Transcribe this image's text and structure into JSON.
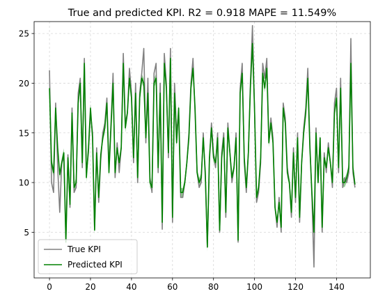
{
  "chart_data": {
    "type": "line",
    "title": "True and predicted KPI. R2 = 0.918 MAPE = 11.549%",
    "xlabel": "",
    "ylabel": "",
    "xlim": [
      -7.5,
      156.5
    ],
    "ylim": [
      0.4,
      26.2
    ],
    "xticks": [
      0,
      20,
      40,
      60,
      80,
      100,
      120,
      140
    ],
    "yticks": [
      5,
      10,
      15,
      20,
      25
    ],
    "grid": true,
    "legend_position": "lower-left",
    "colors": {
      "true": "#808080",
      "predicted": "#008000",
      "band": "#2ca02c"
    },
    "x": [
      0,
      1,
      2,
      3,
      4,
      5,
      6,
      7,
      8,
      9,
      10,
      11,
      12,
      13,
      14,
      15,
      16,
      17,
      18,
      19,
      20,
      21,
      22,
      23,
      24,
      25,
      26,
      27,
      28,
      29,
      30,
      31,
      32,
      33,
      34,
      35,
      36,
      37,
      38,
      39,
      40,
      41,
      42,
      43,
      44,
      45,
      46,
      47,
      48,
      49,
      50,
      51,
      52,
      53,
      54,
      55,
      56,
      57,
      58,
      59,
      60,
      61,
      62,
      63,
      64,
      65,
      66,
      67,
      68,
      69,
      70,
      71,
      72,
      73,
      74,
      75,
      76,
      77,
      78,
      79,
      80,
      81,
      82,
      83,
      84,
      85,
      86,
      87,
      88,
      89,
      90,
      91,
      92,
      93,
      94,
      95,
      96,
      97,
      98,
      99,
      100,
      101,
      102,
      103,
      104,
      105,
      106,
      107,
      108,
      109,
      110,
      111,
      112,
      113,
      114,
      115,
      116,
      117,
      118,
      119,
      120,
      121,
      122,
      123,
      124,
      125,
      126,
      127,
      128,
      129,
      130,
      131,
      132,
      133,
      134,
      135,
      136,
      137,
      138,
      139,
      140,
      141,
      142,
      143,
      144,
      145,
      146,
      147,
      148,
      149
    ],
    "series": [
      {
        "name": "True KPI",
        "values": [
          21.3,
          10.0,
          9.0,
          18.0,
          11.5,
          7.0,
          12.0,
          12.5,
          4.5,
          12.8,
          7.5,
          17.5,
          9.0,
          9.5,
          19.0,
          20.5,
          11.5,
          22.5,
          11.0,
          13.0,
          17.0,
          15.0,
          5.3,
          13.5,
          8.0,
          12.2,
          15.0,
          16.0,
          18.5,
          11.5,
          16.0,
          21.0,
          10.5,
          14.0,
          11.0,
          13.5,
          23.0,
          16.0,
          17.0,
          21.5,
          19.0,
          12.0,
          20.0,
          10.0,
          19.0,
          21.0,
          23.5,
          14.0,
          20.5,
          10.5,
          9.0,
          21.0,
          22.0,
          11.0,
          20.0,
          5.3,
          23.0,
          20.0,
          12.5,
          23.5,
          6.0,
          20.0,
          15.0,
          17.0,
          8.5,
          8.5,
          10.0,
          12.0,
          15.0,
          20.0,
          22.5,
          17.0,
          11.0,
          9.5,
          10.0,
          15.0,
          10.5,
          3.5,
          12.0,
          16.0,
          13.0,
          11.5,
          15.0,
          5.0,
          13.0,
          15.0,
          6.5,
          16.0,
          13.0,
          10.0,
          11.5,
          15.0,
          4.0,
          19.5,
          22.0,
          12.0,
          9.0,
          13.0,
          20.0,
          25.8,
          17.5,
          8.0,
          9.0,
          12.0,
          22.0,
          20.5,
          22.5,
          14.0,
          16.5,
          14.5,
          7.5,
          5.5,
          8.5,
          5.0,
          18.0,
          16.5,
          11.5,
          10.0,
          6.5,
          13.5,
          8.0,
          15.0,
          6.0,
          12.0,
          15.5,
          17.5,
          21.5,
          14.0,
          8.5,
          1.5,
          15.5,
          10.0,
          14.5,
          5.0,
          13.0,
          11.0,
          14.0,
          12.0,
          9.5,
          18.0,
          19.5,
          11.0,
          20.5,
          9.5,
          10.5,
          10.0,
          11.0,
          24.5,
          11.0,
          9.5
        ]
      },
      {
        "name": "Predicted KPI",
        "values": [
          19.5,
          12.0,
          11.0,
          17.5,
          13.5,
          10.8,
          12.0,
          13.0,
          4.0,
          12.5,
          7.8,
          17.0,
          9.5,
          10.0,
          18.0,
          20.0,
          12.0,
          22.0,
          10.5,
          13.5,
          17.5,
          14.5,
          5.2,
          13.0,
          8.5,
          12.8,
          14.5,
          15.5,
          18.0,
          11.0,
          15.5,
          20.0,
          11.0,
          13.5,
          12.0,
          13.5,
          22.0,
          15.5,
          17.0,
          20.5,
          18.5,
          12.5,
          19.0,
          10.5,
          18.5,
          20.5,
          20.0,
          14.5,
          19.0,
          10.0,
          9.5,
          20.0,
          20.5,
          11.5,
          19.0,
          6.0,
          22.0,
          19.5,
          13.0,
          22.5,
          6.5,
          19.0,
          14.0,
          17.5,
          9.0,
          9.0,
          10.0,
          12.0,
          14.5,
          19.5,
          21.5,
          17.5,
          11.0,
          10.0,
          10.5,
          14.5,
          11.0,
          3.5,
          12.5,
          15.5,
          12.5,
          12.0,
          14.5,
          5.2,
          12.5,
          14.5,
          7.0,
          15.5,
          13.0,
          10.5,
          11.5,
          14.5,
          4.2,
          19.0,
          21.0,
          12.5,
          9.5,
          13.0,
          19.5,
          24.0,
          17.5,
          8.5,
          9.5,
          12.5,
          21.0,
          19.5,
          21.5,
          14.0,
          16.0,
          14.0,
          7.5,
          6.0,
          8.0,
          5.5,
          17.5,
          16.0,
          11.0,
          10.0,
          7.0,
          13.0,
          8.5,
          14.5,
          6.5,
          12.0,
          15.0,
          17.0,
          20.5,
          13.5,
          9.0,
          5.0,
          15.0,
          10.0,
          14.5,
          5.5,
          12.5,
          11.5,
          13.5,
          12.0,
          10.0,
          17.0,
          18.5,
          11.5,
          19.5,
          10.0,
          10.0,
          10.5,
          11.5,
          22.0,
          11.5,
          9.8
        ]
      }
    ]
  }
}
